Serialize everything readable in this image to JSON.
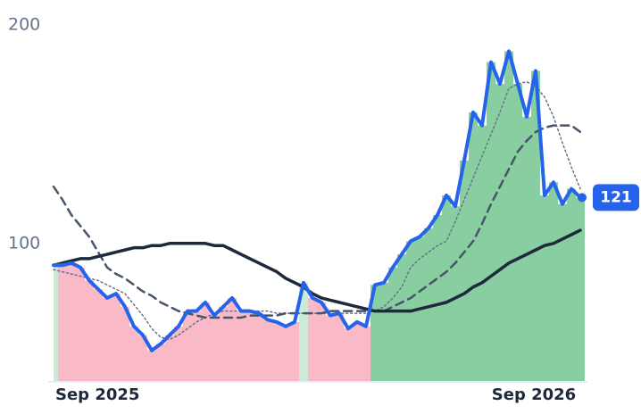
{
  "chart_data": {
    "type": "line",
    "categories": [
      "Sep 2025",
      null,
      null,
      null,
      null,
      null,
      null,
      null,
      null,
      null,
      null,
      null,
      null,
      null,
      null,
      null,
      null,
      null,
      null,
      null,
      null,
      null,
      null,
      null,
      null,
      null,
      null,
      null,
      null,
      null,
      null,
      null,
      null,
      null,
      null,
      null,
      null,
      null,
      null,
      null,
      null,
      null,
      null,
      null,
      null,
      null,
      null,
      null,
      null,
      null,
      null,
      null,
      null,
      null,
      "Sep 2026",
      null,
      null,
      null,
      null,
      null
    ],
    "ylim": [
      37,
      200
    ],
    "yticks": [
      100,
      200
    ],
    "series": [
      {
        "color": "#2563eb",
        "style": "solid",
        "width": 4,
        "values": [
          90,
          90,
          91,
          89,
          83,
          79,
          75,
          77,
          71,
          62,
          58,
          51,
          54,
          58,
          62,
          69,
          69,
          73,
          67,
          71,
          75,
          69,
          69,
          68,
          65,
          64,
          62,
          64,
          82,
          75,
          73,
          67,
          68,
          61,
          64,
          62,
          81,
          82,
          89,
          95,
          101,
          103,
          107,
          113,
          122,
          117,
          138,
          160,
          154,
          183,
          173,
          188,
          173,
          158,
          179,
          122,
          128,
          118,
          125,
          121
        ]
      },
      {
        "color": "#64748b",
        "style": "dotted",
        "width": 1.5,
        "values": [
          88,
          87,
          86,
          85,
          84,
          83,
          81,
          79,
          77,
          72,
          67,
          61,
          57,
          56,
          58,
          61,
          64,
          66,
          68,
          69,
          69,
          69,
          69,
          69,
          69,
          68,
          68,
          68,
          68,
          68,
          68,
          68,
          68,
          68,
          68,
          68,
          69,
          71,
          75,
          80,
          89,
          93,
          96,
          99,
          101,
          110,
          120,
          130,
          140,
          150,
          160,
          171,
          173,
          174,
          172,
          167,
          158,
          146,
          135,
          125
        ]
      },
      {
        "color": "#475569",
        "style": "dashed",
        "width": 2.5,
        "values": [
          126,
          120,
          113,
          108,
          103,
          96,
          89,
          86,
          84,
          81,
          78,
          76,
          73,
          71,
          69,
          68,
          67,
          66,
          66,
          66,
          66,
          66,
          67,
          67,
          67,
          67,
          68,
          68,
          68,
          68,
          68,
          69,
          69,
          69,
          69,
          69,
          69,
          69,
          71,
          73,
          75,
          78,
          81,
          84,
          87,
          91,
          96,
          101,
          109,
          118,
          126,
          134,
          142,
          147,
          151,
          153,
          154,
          154,
          154,
          151
        ]
      },
      {
        "color": "#1e293b",
        "style": "solid",
        "width": 3.5,
        "values": [
          90,
          91,
          92,
          93,
          93,
          94,
          95,
          96,
          97,
          98,
          98,
          99,
          99,
          100,
          100,
          100,
          100,
          100,
          99,
          99,
          97,
          95,
          93,
          91,
          89,
          87,
          84,
          82,
          80,
          77,
          75,
          74,
          73,
          72,
          71,
          70,
          69,
          69,
          69,
          69,
          69,
          70,
          71,
          72,
          73,
          75,
          77,
          80,
          82,
          85,
          88,
          91,
          93,
          95,
          97,
          99,
          100,
          102,
          104,
          106
        ]
      }
    ],
    "up_color": "#6cc28a",
    "down_color": "#f7a8b8",
    "last_label": true
  }
}
